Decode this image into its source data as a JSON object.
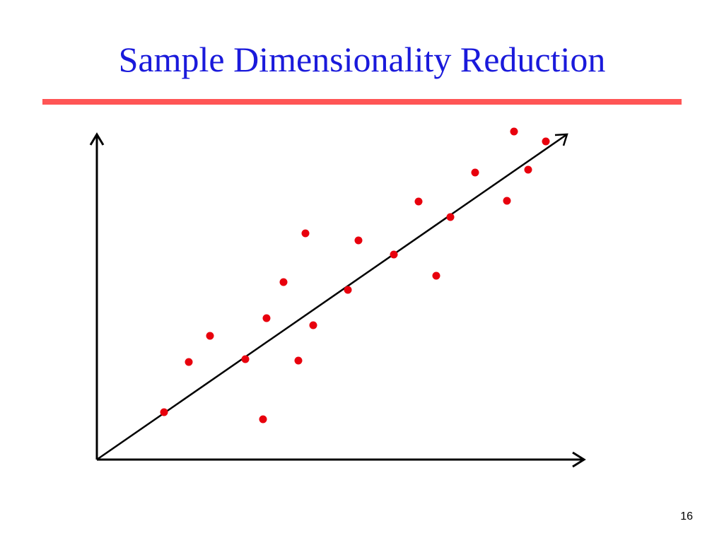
{
  "slide": {
    "title": "Sample Dimensionality Reduction",
    "page_number": "16"
  },
  "colors": {
    "title": "#1a1adb",
    "rule": "#ff5555",
    "axes": "#000000",
    "points": "#e8000d"
  },
  "icons": {
    "axis_arrowheads": "open-arrowhead-icon",
    "point_marker": "filled-circle"
  },
  "points": [
    {
      "x": 9.5,
      "y": 6.7
    },
    {
      "x": 13.0,
      "y": 13.8
    },
    {
      "x": 16.0,
      "y": 17.5
    },
    {
      "x": 21.0,
      "y": 14.2
    },
    {
      "x": 23.5,
      "y": 5.7
    },
    {
      "x": 24.0,
      "y": 20.0
    },
    {
      "x": 26.4,
      "y": 25.1
    },
    {
      "x": 28.5,
      "y": 14.0
    },
    {
      "x": 29.5,
      "y": 32.0
    },
    {
      "x": 30.6,
      "y": 19.0
    },
    {
      "x": 35.5,
      "y": 24.0
    },
    {
      "x": 37.0,
      "y": 31.0
    },
    {
      "x": 42.0,
      "y": 29.0
    },
    {
      "x": 45.5,
      "y": 36.5
    },
    {
      "x": 48.0,
      "y": 26.0
    },
    {
      "x": 50.0,
      "y": 34.3
    },
    {
      "x": 53.5,
      "y": 40.6
    },
    {
      "x": 58.0,
      "y": 36.6
    },
    {
      "x": 59.0,
      "y": 46.4
    },
    {
      "x": 61.0,
      "y": 41.0
    },
    {
      "x": 63.5,
      "y": 45.0
    }
  ]
}
